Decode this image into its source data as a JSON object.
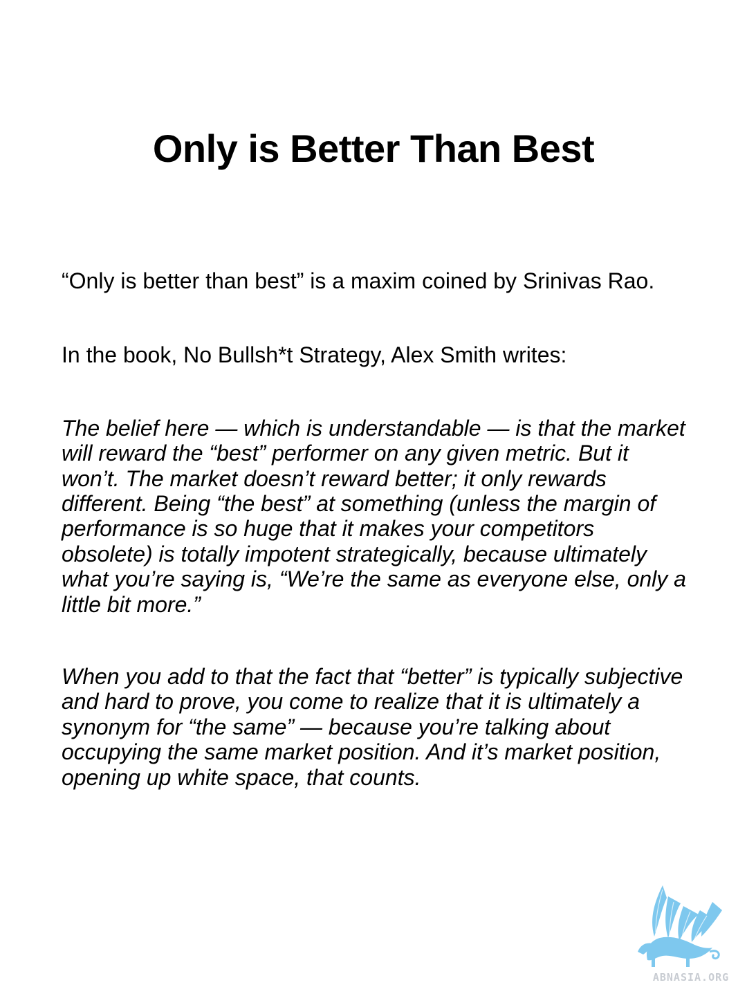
{
  "document": {
    "title": "Only is Better Than Best",
    "paragraphs": {
      "intro": "“Only is better than best” is a maxim coined by Srinivas Rao.",
      "source": "In the book, No Bullsh*t Strategy, Alex Smith writes:",
      "quote1": "The belief here — which is understandable — is that the market will reward the “best” performer on any given metric. But it won’t. The market doesn’t reward better; it only rewards different. Being “the best” at something (unless the margin of performance is so huge that it makes your competitors obsolete) is totally impotent strategically, because ultimately what you’re saying is, “We’re the same as everyone else, only a little bit more.”",
      "quote2": "When you add to that the fact that “better” is typically subjective and hard to prove, you come to realize that it is ultimately a synonym for “the same” — because you’re talking about occupying the same market position. And it’s market position, opening up white space, that counts."
    }
  },
  "logo": {
    "icon": "griffin-logo-icon",
    "text": "ABNASIA.ORG",
    "color": "#7ec8ee"
  }
}
